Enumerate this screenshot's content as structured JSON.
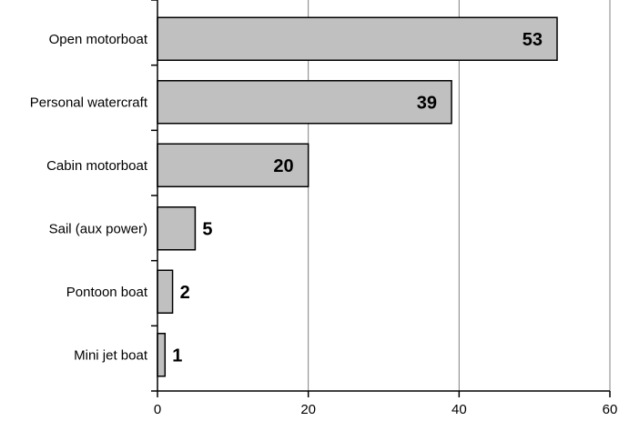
{
  "chart_data": {
    "type": "bar",
    "orientation": "horizontal",
    "title": "",
    "xlabel": "",
    "ylabel": "",
    "categories": [
      "Open motorboat",
      "Personal watercraft",
      "Cabin motorboat",
      "Sail (aux power)",
      "Pontoon boat",
      "Mini jet boat"
    ],
    "values": [
      53,
      39,
      20,
      5,
      2,
      1
    ],
    "xlim": [
      0,
      60
    ],
    "xticks": [
      0,
      20,
      40,
      60
    ],
    "grid": "vertical",
    "legend": "none",
    "data_labels": true,
    "colors": {
      "bar_fill": "#c0c0c0",
      "bar_stroke": "#000000",
      "grid": "#808080",
      "axis": "#000000"
    }
  }
}
